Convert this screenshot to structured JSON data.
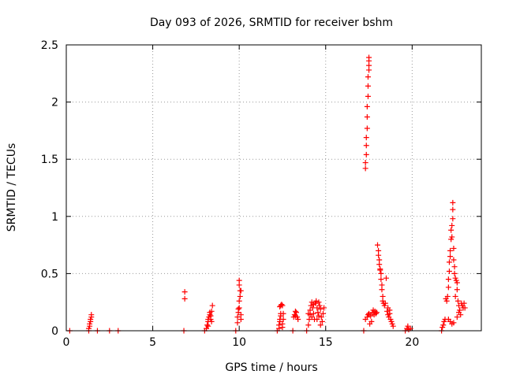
{
  "chart_data": {
    "type": "scatter",
    "title": "Day 093 of 2026, SRMTID for receiver bshm",
    "xlabel": "GPS time / hours",
    "ylabel": "SRMTID / TECUs",
    "xlim": [
      0,
      24
    ],
    "ylim": [
      0,
      2.5
    ],
    "xticks": [
      0,
      5,
      10,
      15,
      20
    ],
    "yticks": [
      0,
      0.5,
      1,
      1.5,
      2,
      2.5
    ],
    "grid": true,
    "marker": "+",
    "marker_color": "#ff0000",
    "series": [
      {
        "name": "SRMTID",
        "points": [
          [
            0.2,
            0.0
          ],
          [
            1.3,
            0.0
          ],
          [
            1.8,
            0.0
          ],
          [
            2.5,
            0.0
          ],
          [
            3.0,
            0.0
          ],
          [
            1.3,
            0.02
          ],
          [
            1.35,
            0.04
          ],
          [
            1.35,
            0.06
          ],
          [
            1.4,
            0.08
          ],
          [
            1.4,
            0.1
          ],
          [
            1.45,
            0.12
          ],
          [
            1.45,
            0.14
          ],
          [
            6.8,
            0.0
          ],
          [
            6.85,
            0.28
          ],
          [
            6.85,
            0.34
          ],
          [
            8.0,
            0.0
          ],
          [
            8.1,
            0.02
          ],
          [
            8.15,
            0.05
          ],
          [
            8.2,
            0.08
          ],
          [
            8.2,
            0.1
          ],
          [
            8.25,
            0.12
          ],
          [
            8.3,
            0.14
          ],
          [
            8.3,
            0.16
          ],
          [
            8.35,
            0.1
          ],
          [
            8.4,
            0.08
          ],
          [
            8.4,
            0.17
          ],
          [
            8.45,
            0.22
          ],
          [
            8.2,
            0.04
          ],
          [
            8.35,
            0.13
          ],
          [
            9.8,
            0.0
          ],
          [
            9.9,
            0.07
          ],
          [
            9.9,
            0.12
          ],
          [
            9.95,
            0.16
          ],
          [
            9.95,
            0.19
          ],
          [
            10.0,
            0.2
          ],
          [
            10.0,
            0.26
          ],
          [
            10.05,
            0.3
          ],
          [
            10.05,
            0.35
          ],
          [
            10.1,
            0.35
          ],
          [
            10.0,
            0.4
          ],
          [
            10.0,
            0.44
          ],
          [
            10.1,
            0.14
          ],
          [
            10.1,
            0.1
          ],
          [
            12.2,
            0.0
          ],
          [
            12.3,
            0.02
          ],
          [
            12.3,
            0.05
          ],
          [
            12.35,
            0.08
          ],
          [
            12.35,
            0.1
          ],
          [
            12.4,
            0.13
          ],
          [
            12.4,
            0.15
          ],
          [
            12.35,
            0.21
          ],
          [
            12.4,
            0.22
          ],
          [
            12.45,
            0.23
          ],
          [
            12.5,
            0.22
          ],
          [
            12.5,
            0.06
          ],
          [
            12.55,
            0.1
          ],
          [
            12.55,
            0.15
          ],
          [
            12.5,
            0.03
          ],
          [
            13.1,
            0.0
          ],
          [
            13.15,
            0.12
          ],
          [
            13.2,
            0.14
          ],
          [
            13.25,
            0.13
          ],
          [
            13.3,
            0.16
          ],
          [
            13.35,
            0.12
          ],
          [
            13.4,
            0.1
          ],
          [
            13.25,
            0.17
          ],
          [
            13.9,
            0.0
          ],
          [
            14.0,
            0.05
          ],
          [
            14.05,
            0.1
          ],
          [
            14.1,
            0.14
          ],
          [
            14.1,
            0.18
          ],
          [
            14.15,
            0.22
          ],
          [
            14.2,
            0.25
          ],
          [
            14.25,
            0.2
          ],
          [
            14.3,
            0.15
          ],
          [
            14.35,
            0.1
          ],
          [
            14.4,
            0.24
          ],
          [
            14.45,
            0.26
          ],
          [
            14.5,
            0.2
          ],
          [
            14.55,
            0.16
          ],
          [
            14.6,
            0.13
          ],
          [
            14.65,
            0.22
          ],
          [
            14.7,
            0.19
          ],
          [
            14.75,
            0.12
          ],
          [
            14.8,
            0.08
          ],
          [
            14.85,
            0.15
          ],
          [
            14.9,
            0.2
          ],
          [
            14.3,
            0.23
          ],
          [
            14.5,
            0.1
          ],
          [
            14.6,
            0.25
          ],
          [
            14.0,
            0.15
          ],
          [
            14.2,
            0.12
          ],
          [
            14.7,
            0.05
          ],
          [
            17.2,
            0.0
          ],
          [
            17.3,
            1.42
          ],
          [
            17.3,
            1.47
          ],
          [
            17.35,
            1.54
          ],
          [
            17.35,
            1.62
          ],
          [
            17.35,
            1.69
          ],
          [
            17.4,
            1.77
          ],
          [
            17.4,
            1.87
          ],
          [
            17.4,
            1.96
          ],
          [
            17.45,
            2.05
          ],
          [
            17.45,
            2.14
          ],
          [
            17.45,
            2.22
          ],
          [
            17.5,
            2.28
          ],
          [
            17.5,
            2.32
          ],
          [
            17.5,
            2.36
          ],
          [
            17.5,
            2.39
          ],
          [
            17.3,
            0.1
          ],
          [
            17.4,
            0.12
          ],
          [
            17.45,
            0.14
          ],
          [
            17.5,
            0.15
          ],
          [
            17.6,
            0.13
          ],
          [
            17.7,
            0.16
          ],
          [
            17.75,
            0.18
          ],
          [
            17.8,
            0.14
          ],
          [
            17.85,
            0.17
          ],
          [
            17.9,
            0.15
          ],
          [
            17.95,
            0.16
          ],
          [
            17.65,
            0.08
          ],
          [
            17.55,
            0.06
          ],
          [
            18.0,
            0.75
          ],
          [
            18.05,
            0.7
          ],
          [
            18.05,
            0.66
          ],
          [
            18.1,
            0.62
          ],
          [
            18.1,
            0.58
          ],
          [
            18.15,
            0.54
          ],
          [
            18.15,
            0.53
          ],
          [
            18.2,
            0.5
          ],
          [
            18.2,
            0.45
          ],
          [
            18.25,
            0.4
          ],
          [
            18.25,
            0.36
          ],
          [
            18.3,
            0.3
          ],
          [
            18.3,
            0.26
          ],
          [
            18.35,
            0.24
          ],
          [
            18.4,
            0.22
          ],
          [
            18.45,
            0.24
          ],
          [
            18.5,
            0.46
          ],
          [
            18.55,
            0.17
          ],
          [
            18.6,
            0.14
          ],
          [
            18.65,
            0.12
          ],
          [
            18.7,
            0.15
          ],
          [
            18.75,
            0.1
          ],
          [
            18.8,
            0.08
          ],
          [
            18.85,
            0.06
          ],
          [
            18.9,
            0.04
          ],
          [
            18.6,
            0.2
          ],
          [
            18.7,
            0.18
          ],
          [
            19.6,
            0.0
          ],
          [
            19.7,
            0.02
          ],
          [
            19.75,
            0.04
          ],
          [
            19.8,
            0.01
          ],
          [
            19.9,
            0.02
          ],
          [
            21.7,
            0.0
          ],
          [
            21.75,
            0.03
          ],
          [
            21.8,
            0.05
          ],
          [
            21.85,
            0.08
          ],
          [
            21.9,
            0.1
          ],
          [
            21.95,
            0.28
          ],
          [
            22.0,
            0.26
          ],
          [
            22.05,
            0.3
          ],
          [
            22.1,
            0.38
          ],
          [
            22.1,
            0.45
          ],
          [
            22.15,
            0.52
          ],
          [
            22.15,
            0.6
          ],
          [
            22.2,
            0.65
          ],
          [
            22.2,
            0.7
          ],
          [
            22.25,
            0.8
          ],
          [
            22.25,
            0.88
          ],
          [
            22.3,
            0.82
          ],
          [
            22.3,
            0.92
          ],
          [
            22.35,
            0.98
          ],
          [
            22.35,
            1.06
          ],
          [
            22.35,
            1.12
          ],
          [
            22.4,
            0.72
          ],
          [
            22.4,
            0.62
          ],
          [
            22.45,
            0.56
          ],
          [
            22.45,
            0.5
          ],
          [
            22.5,
            0.46
          ],
          [
            22.55,
            0.44
          ],
          [
            22.6,
            0.42
          ],
          [
            22.6,
            0.36
          ],
          [
            22.5,
            0.3
          ],
          [
            22.65,
            0.26
          ],
          [
            22.7,
            0.22
          ],
          [
            22.75,
            0.18
          ],
          [
            22.8,
            0.14
          ],
          [
            22.85,
            0.24
          ],
          [
            22.9,
            0.22
          ],
          [
            22.95,
            0.2
          ],
          [
            23.0,
            0.24
          ],
          [
            23.05,
            0.2
          ],
          [
            22.2,
            0.08
          ],
          [
            22.3,
            0.06
          ],
          [
            22.4,
            0.07
          ],
          [
            22.1,
            0.1
          ],
          [
            22.6,
            0.12
          ],
          [
            22.7,
            0.16
          ]
        ]
      }
    ]
  }
}
